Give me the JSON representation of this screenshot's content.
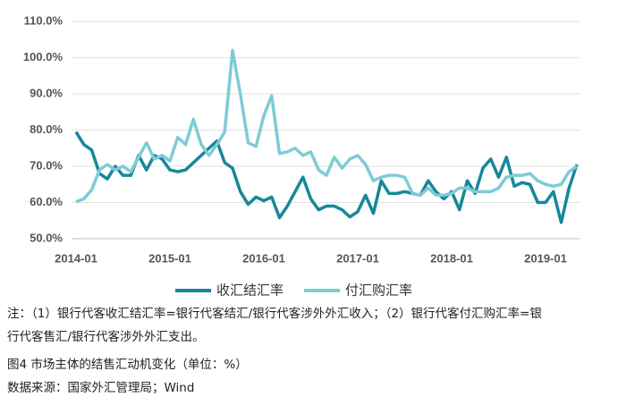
{
  "chart_data": {
    "type": "line",
    "title": "图4  市场主体的结售汇动机变化（单位：%）",
    "notes": "注：（1）银行代客收汇结汇率=银行代客结汇/银行代客涉外外汇收入；（2）银行代客付汇购汇率=银行代客售汇/银行代客涉外外汇支出。",
    "source": "数据来源：国家外汇管理局；Wind",
    "x": [
      "2014-01",
      "2014-02",
      "2014-03",
      "2014-04",
      "2014-05",
      "2014-06",
      "2014-07",
      "2014-08",
      "2014-09",
      "2014-10",
      "2014-11",
      "2014-12",
      "2015-01",
      "2015-02",
      "2015-03",
      "2015-04",
      "2015-05",
      "2015-06",
      "2015-07",
      "2015-08",
      "2015-09",
      "2015-10",
      "2015-11",
      "2015-12",
      "2016-01",
      "2016-02",
      "2016-03",
      "2016-04",
      "2016-05",
      "2016-06",
      "2016-07",
      "2016-08",
      "2016-09",
      "2016-10",
      "2016-11",
      "2016-12",
      "2017-01",
      "2017-02",
      "2017-03",
      "2017-04",
      "2017-05",
      "2017-06",
      "2017-07",
      "2017-08",
      "2017-09",
      "2017-10",
      "2017-11",
      "2017-12",
      "2018-01",
      "2018-02",
      "2018-03",
      "2018-04",
      "2018-05",
      "2018-06",
      "2018-07",
      "2018-08",
      "2018-09",
      "2018-10",
      "2018-11",
      "2018-12",
      "2019-01",
      "2019-02",
      "2019-03",
      "2019-04",
      "2019-05"
    ],
    "xticks": [
      "2014-01",
      "2015-01",
      "2016-01",
      "2017-01",
      "2018-01",
      "2019-01"
    ],
    "series": [
      {
        "name": "收汇结汇率",
        "color": "#17879a",
        "values": [
          79.5,
          76,
          74.5,
          68,
          66.5,
          70,
          67.5,
          67.5,
          73,
          69,
          73,
          72,
          69,
          68.5,
          69,
          71,
          73,
          75,
          77,
          71,
          69.5,
          63,
          59.5,
          61.5,
          60.5,
          61.5,
          55.8,
          59,
          63,
          67,
          61,
          58,
          59,
          59,
          58,
          56,
          57.5,
          62,
          57,
          66,
          62.5,
          62.5,
          63,
          62.5,
          62,
          66,
          63,
          61,
          63,
          58,
          66,
          62.5,
          69.5,
          72,
          67,
          72.5,
          64.5,
          65.5,
          65,
          60,
          60,
          63,
          54.5,
          64,
          70.5
        ]
      },
      {
        "name": "付汇购汇率",
        "color": "#7ecbd7",
        "values": [
          60.2,
          61,
          63.5,
          69,
          70.5,
          69,
          70,
          68.5,
          72.5,
          76.5,
          72,
          73,
          71.5,
          78,
          76,
          83,
          76,
          73,
          76,
          79.5,
          102,
          90,
          76.5,
          75.5,
          84,
          89.5,
          73.5,
          74,
          75,
          73,
          74,
          69,
          67.5,
          72.5,
          69.5,
          72,
          73,
          70.5,
          66,
          67,
          67.5,
          67.5,
          67,
          62.5,
          62,
          64,
          62,
          62,
          62.5,
          64,
          64,
          63,
          63,
          63,
          64,
          67,
          67.5,
          67.5,
          68,
          66,
          65,
          64.5,
          65,
          68.5,
          70
        ]
      }
    ],
    "ylim": [
      50,
      110
    ],
    "yticks": [
      {
        "value": 50,
        "label": "50.0%"
      },
      {
        "value": 60,
        "label": "60.0%"
      },
      {
        "value": 70,
        "label": "70.0%"
      },
      {
        "value": 80,
        "label": "80.0%"
      },
      {
        "value": 90,
        "label": "90.0%"
      },
      {
        "value": 100,
        "label": "100.0%"
      },
      {
        "value": 110,
        "label": "110.0%"
      }
    ],
    "grid": true
  }
}
